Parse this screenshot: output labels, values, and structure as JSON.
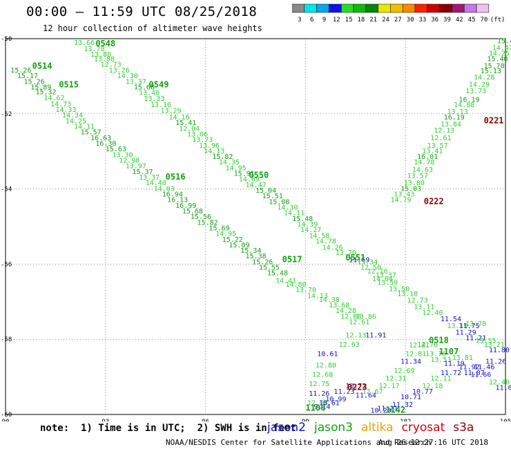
{
  "header": {
    "title": "00:00 – 11:59 UTC 08/25/2018",
    "subtitle": "12 hour collection of altimeter wave heights"
  },
  "colorbar": {
    "unit": "(ft)",
    "bins": [
      {
        "label": "3",
        "color": "#8a8a8a"
      },
      {
        "label": "6",
        "color": "#00e8e8"
      },
      {
        "label": "9",
        "color": "#00a8f0"
      },
      {
        "label": "12",
        "color": "#1010e8"
      },
      {
        "label": "15",
        "color": "#20e020"
      },
      {
        "label": "18",
        "color": "#10b810"
      },
      {
        "label": "21",
        "color": "#008800"
      },
      {
        "label": "24",
        "color": "#e8e800"
      },
      {
        "label": "27",
        "color": "#f0c000"
      },
      {
        "label": "30",
        "color": "#ff8800"
      },
      {
        "label": "33",
        "color": "#ff2000"
      },
      {
        "label": "36",
        "color": "#cc0000"
      },
      {
        "label": "39",
        "color": "#880000"
      },
      {
        "label": "42",
        "color": "#a01870"
      },
      {
        "label": "45",
        "color": "#c878e8"
      },
      {
        "label": "70",
        "color": "#f0c0f0"
      }
    ]
  },
  "note": "note:  1) Time is in UTC;  2) SWH is in feet",
  "missions": [
    {
      "name": "jason2",
      "color": "#1010d0"
    },
    {
      "name": "jason3",
      "color": "#10a010"
    },
    {
      "name": "altika",
      "color": "#f0a000"
    },
    {
      "name": "cryosat",
      "color": "#d00000"
    },
    {
      "name": "s3a",
      "color": "#8a0000"
    }
  ],
  "credit": "NOAA/NESDIS Center for Satellite Applications and Research",
  "generated": "Aug 26 12:27:16 UTC 2018",
  "chart_data": {
    "type": "scatter",
    "xlim": [
      90,
      105
    ],
    "ylim": [
      -60,
      -50
    ],
    "xticks": [
      "90",
      "93",
      "96",
      "99",
      "102",
      "105"
    ],
    "yticks": [
      "-50",
      "-52",
      "-54",
      "-56",
      "-58",
      "-60"
    ],
    "grid": true,
    "tracks": [
      {
        "label": "0548",
        "lx": 92.7,
        "ly": -50.2,
        "color": "#10a010",
        "points": [
          [
            92.05,
            -50.17,
            "13.66"
          ],
          [
            92.35,
            -50.33,
            "13.78"
          ],
          [
            92.55,
            -50.48,
            "13.80"
          ],
          [
            92.65,
            -50.6,
            "13.88"
          ],
          [
            92.85,
            -50.74,
            "12.73"
          ],
          [
            93.1,
            -50.9,
            "13.26"
          ],
          [
            93.35,
            -51.05,
            "14.30"
          ],
          [
            93.6,
            -51.2,
            "13.37"
          ],
          [
            93.85,
            -51.35,
            "15.68"
          ],
          [
            94.0,
            -51.5,
            "13.40"
          ],
          [
            94.15,
            -51.65,
            "13.33"
          ],
          [
            94.35,
            -51.82,
            "13.10"
          ],
          [
            94.65,
            -51.98,
            "13.29"
          ],
          [
            94.9,
            -52.15,
            "14.16"
          ],
          [
            95.1,
            -52.3,
            "15.41"
          ],
          [
            95.2,
            -52.45,
            "12.04"
          ],
          [
            95.45,
            -52.6,
            "13.06"
          ],
          [
            95.6,
            -52.75,
            "13.73"
          ],
          [
            95.8,
            -52.9,
            "13.96"
          ],
          [
            95.95,
            -53.05,
            "14.13"
          ],
          [
            96.2,
            -53.2,
            "15.82"
          ],
          [
            96.4,
            -53.35,
            "14.35"
          ],
          [
            96.6,
            -53.5,
            "14.95"
          ],
          [
            96.85,
            -53.65,
            "15.91"
          ],
          [
            97.0,
            -53.8,
            "14.69"
          ],
          [
            97.2,
            -53.95,
            "14.47"
          ],
          [
            97.5,
            -54.1,
            "15.04"
          ],
          [
            97.7,
            -54.25,
            "15.51"
          ],
          [
            97.9,
            -54.4,
            "15.08"
          ],
          [
            98.15,
            -54.55,
            "14.30"
          ],
          [
            98.35,
            -54.7,
            "14.11"
          ],
          [
            98.6,
            -54.85,
            "15.48"
          ],
          [
            98.75,
            -55.0,
            "14.39"
          ],
          [
            98.85,
            -55.15,
            "14.27"
          ],
          [
            99.1,
            -55.3,
            "14.58"
          ],
          [
            99.3,
            -55.45,
            "14.78"
          ],
          [
            99.5,
            -55.62,
            "14.26"
          ],
          [
            99.9,
            -55.75,
            "13.70"
          ],
          [
            100.3,
            -55.95,
            "11.69"
          ],
          [
            100.55,
            -56.0,
            "13.34"
          ],
          [
            100.65,
            -56.15,
            "12.50"
          ],
          [
            100.85,
            -56.25,
            "12.16"
          ],
          [
            101.1,
            -56.35,
            "13.37"
          ],
          [
            101.0,
            -56.45,
            "14.04"
          ],
          [
            101.15,
            -56.55,
            "13.59"
          ],
          [
            101.5,
            -56.72,
            "13.50"
          ],
          [
            101.75,
            -56.85,
            "13.18"
          ],
          [
            102.05,
            -57.02,
            "12.73"
          ],
          [
            102.25,
            -57.2,
            "13.11"
          ],
          [
            102.5,
            -57.35,
            "12.40"
          ],
          [
            103.05,
            -57.52,
            "11.54"
          ],
          [
            103.25,
            -57.7,
            "13.19"
          ],
          [
            103.6,
            -57.7,
            "11.75"
          ],
          [
            103.8,
            -57.65,
            "13.70"
          ],
          [
            103.5,
            -57.88,
            "11.29"
          ],
          [
            103.8,
            -58.02,
            "11.21"
          ],
          [
            104.1,
            -58.1,
            "13.55"
          ],
          [
            104.35,
            -58.2,
            "13.21"
          ],
          [
            104.5,
            -58.35,
            "11.80"
          ]
        ]
      },
      {
        "label": "0549",
        "lx": 94.3,
        "ly": -51.3,
        "color": "#10a010",
        "points": []
      },
      {
        "label": "0550",
        "lx": 97.3,
        "ly": -53.7,
        "color": "#10a010",
        "points": []
      },
      {
        "label": "0551",
        "lx": 100.2,
        "ly": -55.9,
        "color": "#10a010",
        "points": []
      },
      {
        "label": "0514",
        "lx": 90.8,
        "ly": -50.8,
        "color": "#10a010",
        "points": [
          [
            90.15,
            -50.9,
            "15.26"
          ],
          [
            90.35,
            -51.05,
            "15.17"
          ],
          [
            90.55,
            -51.2,
            "15.26"
          ],
          [
            90.75,
            -51.35,
            "15.89"
          ],
          [
            90.9,
            -51.48,
            "15.32"
          ],
          [
            91.15,
            -51.64,
            "14.62"
          ],
          [
            91.35,
            -51.8,
            "14.73"
          ],
          [
            91.5,
            -51.95,
            "14.33"
          ],
          [
            91.7,
            -52.1,
            "14.34"
          ],
          [
            91.8,
            -52.25,
            "14.25"
          ],
          [
            92.05,
            -52.4,
            "14.11"
          ],
          [
            92.25,
            -52.55,
            "15.57"
          ],
          [
            92.55,
            -52.7,
            "16.63"
          ],
          [
            92.7,
            -52.85,
            "16.30"
          ],
          [
            93.0,
            -53.0,
            "15.63"
          ],
          [
            93.2,
            -53.15,
            "13.30"
          ],
          [
            93.4,
            -53.3,
            "12.98"
          ],
          [
            93.6,
            -53.45,
            "13.97"
          ],
          [
            93.8,
            -53.6,
            "15.37"
          ],
          [
            94.0,
            -53.75,
            "13.37"
          ],
          [
            94.2,
            -53.9,
            "14.40"
          ],
          [
            94.45,
            -54.05,
            "14.03"
          ],
          [
            94.7,
            -54.2,
            "16.94"
          ],
          [
            94.85,
            -54.35,
            "16.13"
          ],
          [
            95.1,
            -54.5,
            "16.99"
          ],
          [
            95.3,
            -54.65,
            "15.68"
          ],
          [
            95.55,
            -54.8,
            "15.56"
          ],
          [
            95.75,
            -54.95,
            "15.82"
          ],
          [
            96.1,
            -55.1,
            "15.69"
          ],
          [
            96.3,
            -55.25,
            "14.95"
          ],
          [
            96.5,
            -55.4,
            "15.22"
          ],
          [
            96.7,
            -55.55,
            "15.09"
          ],
          [
            97.05,
            -55.7,
            "15.34"
          ],
          [
            97.2,
            -55.85,
            "15.38"
          ],
          [
            97.4,
            -56.0,
            "15.26"
          ],
          [
            97.6,
            -56.15,
            "15.55"
          ],
          [
            97.85,
            -56.3,
            "15.48"
          ],
          [
            98.1,
            -56.5,
            "14.41"
          ],
          [
            98.4,
            -56.6,
            "14.80"
          ],
          [
            98.7,
            -56.75,
            "13.70"
          ],
          [
            99.05,
            -56.9,
            "14.13"
          ],
          [
            99.4,
            -57.0,
            "14.38"
          ],
          [
            99.7,
            -57.15,
            "13.68"
          ],
          [
            99.9,
            -57.3,
            "14.28"
          ],
          [
            100.05,
            -57.45,
            "12.88"
          ],
          [
            100.3,
            -57.6,
            "12.61"
          ],
          [
            100.5,
            -57.45,
            "13.86"
          ],
          [
            100.2,
            -57.95,
            "12.13"
          ],
          [
            100.8,
            -57.95,
            "11.91"
          ],
          [
            100.0,
            -58.2,
            "12.63"
          ]
        ]
      },
      {
        "label": "0515",
        "lx": 91.6,
        "ly": -51.3,
        "color": "#10a010",
        "points": []
      },
      {
        "label": "0516",
        "lx": 94.8,
        "ly": -53.75,
        "color": "#10a010",
        "points": []
      },
      {
        "label": "0517",
        "lx": 98.3,
        "ly": -55.95,
        "color": "#10a010",
        "points": []
      },
      {
        "label": "0518",
        "lx": 102.7,
        "ly": -58.1,
        "color": "#10a010",
        "points": [
          [
            99.35,
            -58.45,
            "10.61"
          ],
          [
            99.3,
            -58.75,
            "12.80"
          ],
          [
            99.2,
            -59.0,
            "12.68"
          ],
          [
            99.1,
            -59.25,
            "12.75"
          ],
          [
            99.1,
            -59.5,
            "11.26"
          ],
          [
            99.05,
            -59.75,
            "12.75"
          ],
          [
            100.5,
            -59.55,
            "11.64"
          ],
          [
            100.7,
            -59.45,
            "12.67"
          ],
          [
            101.2,
            -59.3,
            "12.17"
          ],
          [
            101.4,
            -59.1,
            "12.31"
          ],
          [
            101.65,
            -58.9,
            "12.69"
          ],
          [
            101.85,
            -58.65,
            "11.34"
          ],
          [
            102.0,
            -58.45,
            "12.81"
          ],
          [
            102.1,
            -58.22,
            "12.41"
          ],
          [
            102.35,
            -58.2,
            "12.70"
          ],
          [
            102.6,
            -58.45,
            "13.76"
          ],
          [
            102.75,
            -58.6,
            "13.53"
          ],
          [
            103.15,
            -58.7,
            "11.19"
          ],
          [
            103.4,
            -58.55,
            "13.81"
          ],
          [
            103.6,
            -58.8,
            "11.92"
          ],
          [
            103.75,
            -58.95,
            "11.07"
          ],
          [
            103.95,
            -59.0,
            "11.66"
          ],
          [
            104.05,
            -58.8,
            "11.46"
          ],
          [
            104.4,
            -58.65,
            "11.26"
          ],
          [
            104.5,
            -59.2,
            "12.40"
          ],
          [
            104.7,
            -59.35,
            "11.67"
          ]
        ]
      },
      {
        "label": "1107",
        "lx": 103.0,
        "ly": -58.4,
        "color": "#10a010",
        "points": []
      },
      {
        "label": "1106",
        "lx": 99.0,
        "ly": -59.9,
        "color": "#10a010",
        "points": [
          [
            99.25,
            -59.85,
            "9.14"
          ],
          [
            99.4,
            -59.75,
            "10.61"
          ],
          [
            99.6,
            -59.65,
            "10.99"
          ],
          [
            99.85,
            -59.45,
            "11.23"
          ],
          [
            100.2,
            -59.3,
            "10.72"
          ],
          [
            101.6,
            -59.8,
            "11.32"
          ],
          [
            101.85,
            -59.6,
            "10.71"
          ],
          [
            102.2,
            -59.45,
            "10.77"
          ],
          [
            102.5,
            -59.3,
            "12.18"
          ],
          [
            102.75,
            -59.1,
            "12.11"
          ],
          [
            103.05,
            -58.95,
            "11.72"
          ],
          [
            101.15,
            -59.9,
            "11.21"
          ],
          [
            100.95,
            -59.95,
            "10.23"
          ]
        ]
      },
      {
        "label": "1142",
        "lx": 101.4,
        "ly": -59.95,
        "color": "#10a010",
        "points": []
      },
      {
        "label": "0221",
        "lx": 104.35,
        "ly": -52.25,
        "color": "#8a0000",
        "points": [
          [
            104.75,
            -50.12,
            "15.43"
          ],
          [
            104.6,
            -50.3,
            "14.47"
          ],
          [
            104.5,
            -50.45,
            "14.25"
          ],
          [
            104.45,
            -50.6,
            "15.40"
          ],
          [
            104.35,
            -50.78,
            "15.70"
          ],
          [
            104.25,
            -50.92,
            "15.13"
          ],
          [
            104.05,
            -51.08,
            "14.28"
          ],
          [
            103.9,
            -51.28,
            "14.29"
          ],
          [
            103.8,
            -51.45,
            "13.73"
          ],
          [
            103.6,
            -51.68,
            "16.19"
          ],
          [
            103.45,
            -51.82,
            "14.88"
          ],
          [
            103.25,
            -52.0,
            "13.13"
          ],
          [
            103.15,
            -52.15,
            "16.19"
          ],
          [
            103.05,
            -52.33,
            "13.84"
          ],
          [
            102.85,
            -52.5,
            "12.13"
          ],
          [
            102.75,
            -52.7,
            "12.61"
          ],
          [
            102.65,
            -52.9,
            "13.57"
          ],
          [
            102.5,
            -53.05,
            "13.41"
          ],
          [
            102.35,
            -53.2,
            "16.01"
          ],
          [
            102.25,
            -53.35,
            "14.78"
          ],
          [
            102.2,
            -53.55,
            "14.63"
          ],
          [
            102.05,
            -53.7,
            "13.57"
          ],
          [
            101.95,
            -53.9,
            "13.80"
          ],
          [
            101.85,
            -54.05,
            "15.03"
          ],
          [
            101.65,
            -54.2,
            "13.43"
          ],
          [
            101.55,
            -54.35,
            "14.79"
          ]
        ]
      },
      {
        "label": "0222",
        "lx": 102.55,
        "ly": -54.4,
        "color": "#8a0000",
        "points": []
      },
      {
        "label": "0223",
        "lx": 100.25,
        "ly": -59.35,
        "color": "#8a0000",
        "points": []
      }
    ]
  }
}
